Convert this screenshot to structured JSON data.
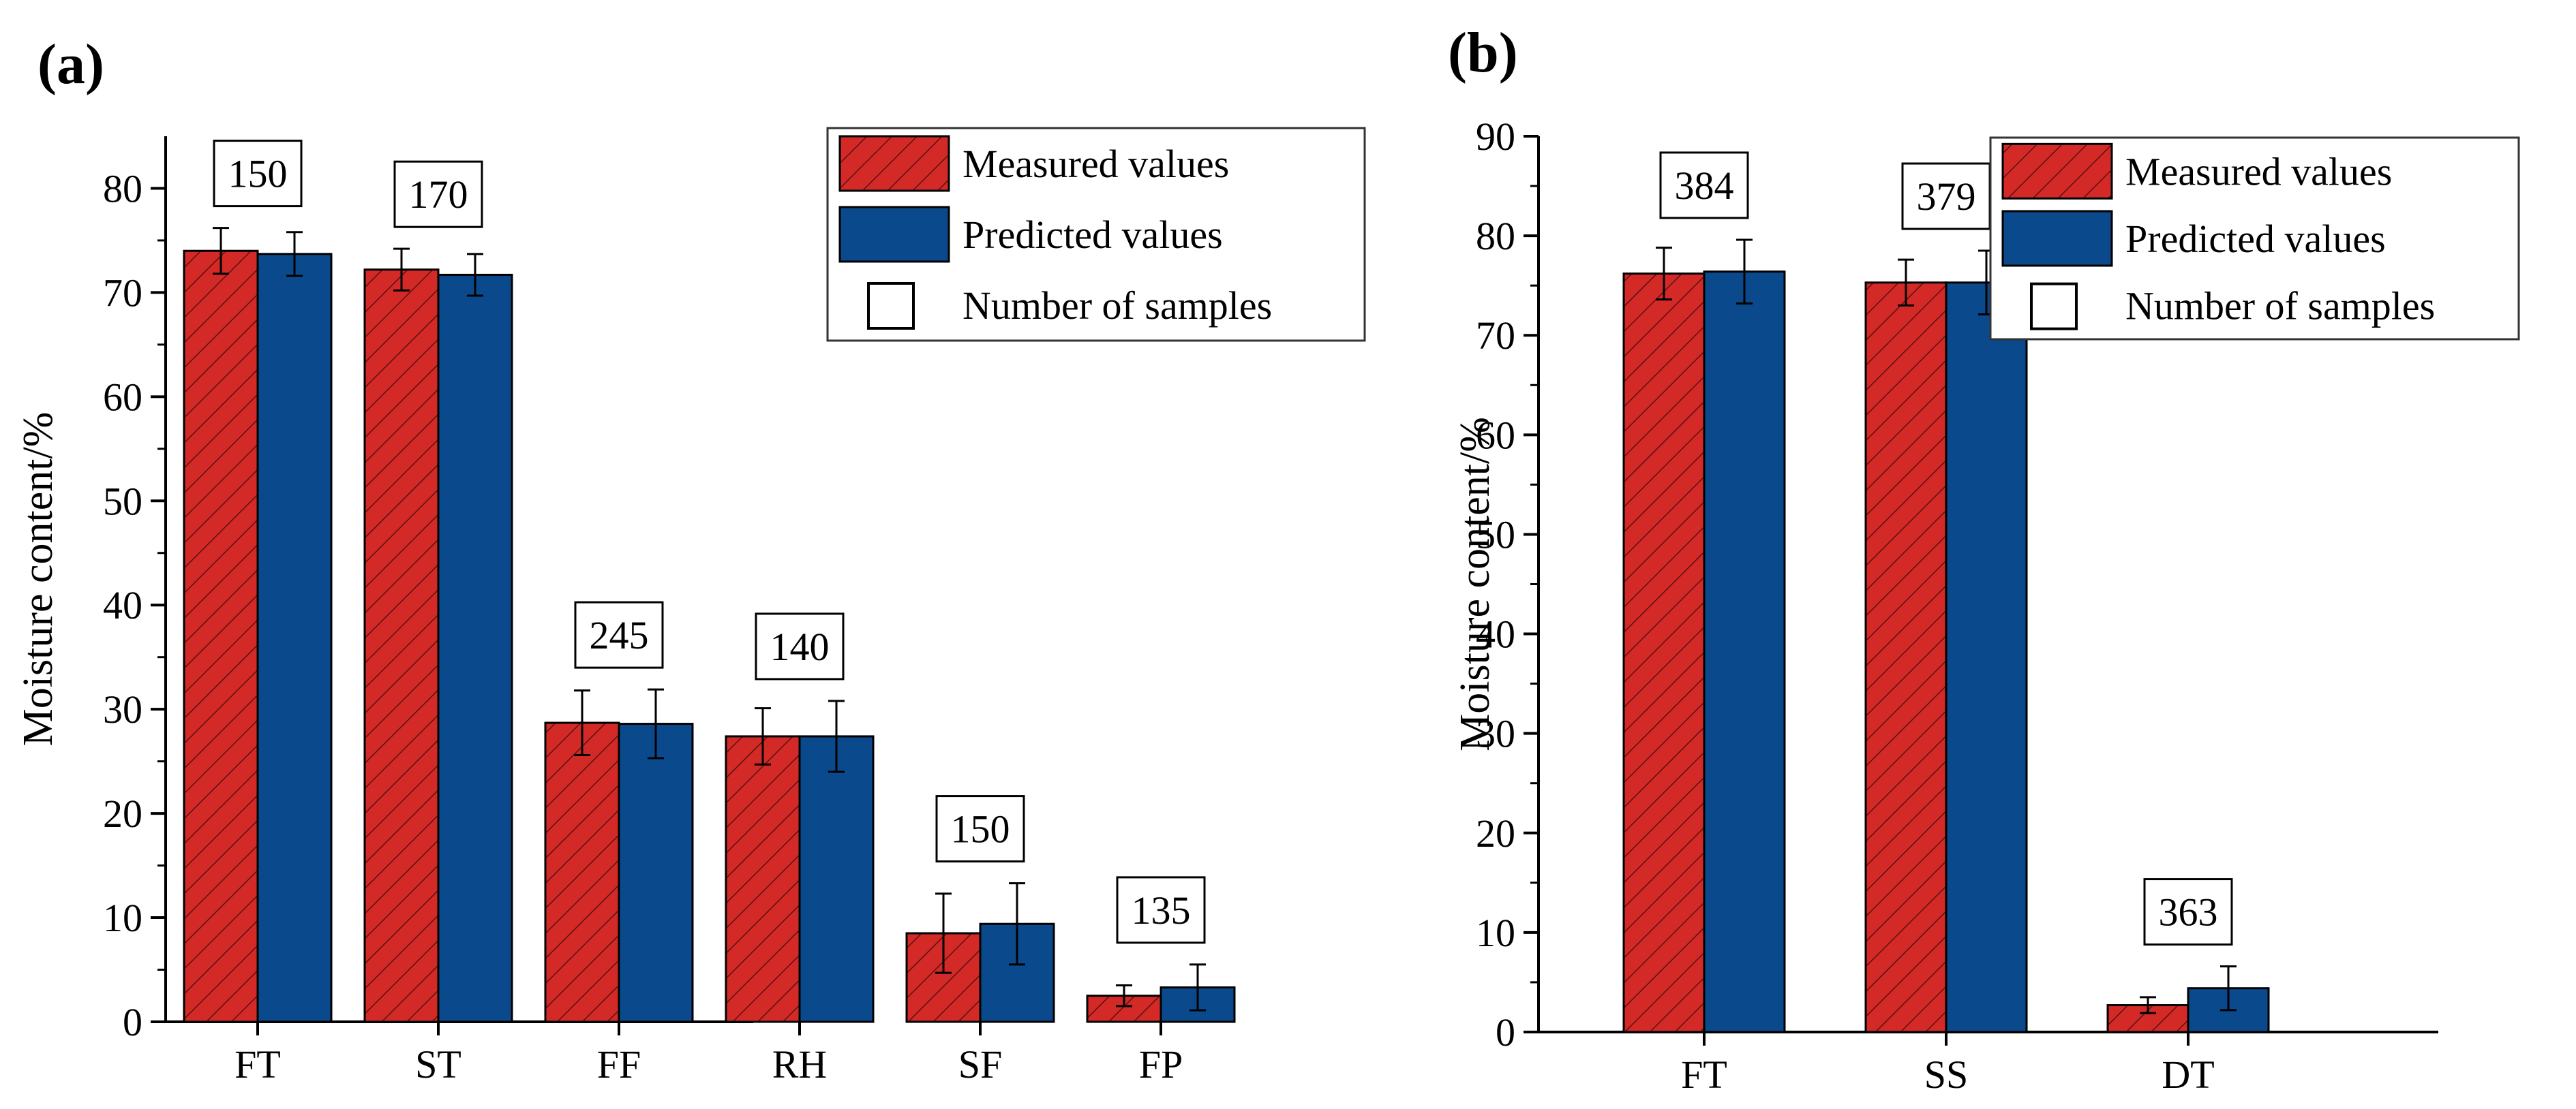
{
  "colors": {
    "measured": "#d42a27",
    "measured_hatch": "#5a1010",
    "predicted": "#0a4a8c",
    "axis": "#000000"
  },
  "legend": {
    "measured": "Measured values",
    "predicted": "Predicted values",
    "samples": "Number of samples"
  },
  "chart_data": [
    {
      "panel": "(a)",
      "type": "bar",
      "ylabel": "Moisture content/%",
      "ylim": [
        0,
        85
      ],
      "yticks": [
        0,
        10,
        20,
        30,
        40,
        50,
        60,
        70,
        80
      ],
      "categories": [
        "FT",
        "ST",
        "FF",
        "RH",
        "SF",
        "FP"
      ],
      "series": [
        {
          "name": "Measured values",
          "values": [
            74.0,
            72.2,
            28.7,
            27.4,
            8.5,
            2.5
          ],
          "errors": [
            2.2,
            2.0,
            3.1,
            2.7,
            3.8,
            1.0
          ]
        },
        {
          "name": "Predicted values",
          "values": [
            73.7,
            71.7,
            28.6,
            27.4,
            9.4,
            3.3
          ],
          "errors": [
            2.1,
            2.0,
            3.3,
            3.4,
            3.9,
            2.2
          ]
        }
      ],
      "sample_counts": [
        150,
        170,
        245,
        140,
        150,
        135
      ],
      "legend_position": "top-right"
    },
    {
      "panel": "(b)",
      "type": "bar",
      "ylabel": "Moisture content/%",
      "ylim": [
        0,
        90
      ],
      "yticks": [
        0,
        10,
        20,
        30,
        40,
        50,
        60,
        70,
        80,
        90
      ],
      "categories": [
        "FT",
        "SS",
        "DT"
      ],
      "series": [
        {
          "name": "Measured values",
          "values": [
            76.2,
            75.3,
            2.7
          ],
          "errors": [
            2.6,
            2.3,
            0.8
          ]
        },
        {
          "name": "Predicted values",
          "values": [
            76.4,
            75.3,
            4.4
          ],
          "errors": [
            3.2,
            3.2,
            2.2
          ]
        }
      ],
      "sample_counts": [
        384,
        379,
        363
      ],
      "legend_position": "top-right"
    }
  ]
}
